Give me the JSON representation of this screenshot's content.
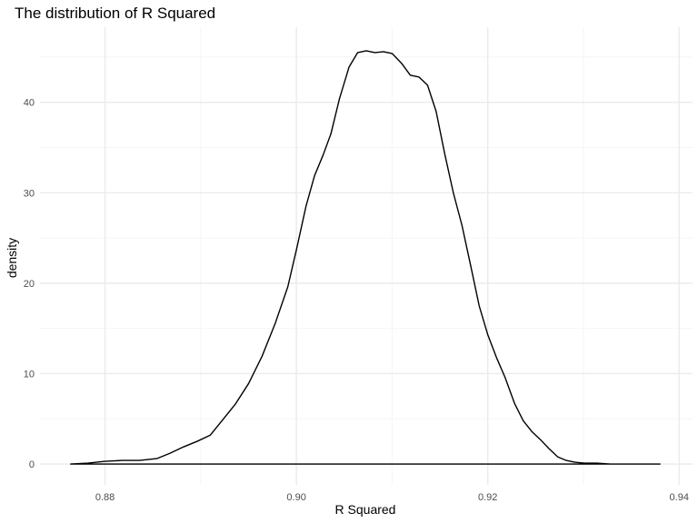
{
  "chart_data": {
    "type": "area",
    "title": "The distribution of R Squared",
    "xlabel": "R Squared",
    "ylabel": "density",
    "xlim": [
      0.8732,
      0.9414
    ],
    "ylim": [
      -2.3,
      48.3
    ],
    "x_ticks": [
      0.88,
      0.9,
      0.92,
      0.94
    ],
    "x_tick_labels": [
      "0.88",
      "0.90",
      "0.92",
      "0.94"
    ],
    "y_ticks": [
      0,
      10,
      20,
      30,
      40
    ],
    "y_tick_labels": [
      "0",
      "10",
      "20",
      "30",
      "40"
    ],
    "grid": true,
    "legend": "none",
    "series": [
      {
        "x": [
          0.8764,
          0.8782,
          0.88,
          0.8818,
          0.8836,
          0.8854,
          0.8868,
          0.8882,
          0.8896,
          0.891,
          0.8923,
          0.8936,
          0.895,
          0.8964,
          0.8978,
          0.8991,
          0.9,
          0.901,
          0.9019,
          0.9028,
          0.9036,
          0.9045,
          0.9055,
          0.9064,
          0.9073,
          0.9082,
          0.9091,
          0.91,
          0.911,
          0.9119,
          0.9128,
          0.9137,
          0.9146,
          0.9155,
          0.9164,
          0.9173,
          0.9182,
          0.9191,
          0.92,
          0.9209,
          0.9218,
          0.9228,
          0.9237,
          0.9246,
          0.9255,
          0.9264,
          0.9273,
          0.9282,
          0.9291,
          0.9301,
          0.9314,
          0.9328,
          0.9342,
          0.9355,
          0.9369,
          0.938
        ],
        "y": [
          0.0,
          0.1,
          0.3,
          0.4,
          0.4,
          0.6,
          1.2,
          1.9,
          2.5,
          3.2,
          4.9,
          6.6,
          8.9,
          11.9,
          15.6,
          19.6,
          23.7,
          28.5,
          31.9,
          34.2,
          36.5,
          40.4,
          43.9,
          45.5,
          45.7,
          45.5,
          45.6,
          45.4,
          44.3,
          43.0,
          42.8,
          41.9,
          39.0,
          34.3,
          30.0,
          26.4,
          22.0,
          17.5,
          14.3,
          11.8,
          9.6,
          6.7,
          4.8,
          3.6,
          2.7,
          1.7,
          0.8,
          0.4,
          0.2,
          0.1,
          0.1,
          0.0,
          0.0,
          0.0,
          0.0,
          0.0
        ],
        "color": "#000000"
      }
    ]
  },
  "colors": {
    "background": "#ffffff",
    "grid_major": "#ebebeb",
    "grid_minor": "#f5f5f5",
    "line": "#000000",
    "axis_text": "#4d4d4d",
    "title_text": "#000000"
  }
}
